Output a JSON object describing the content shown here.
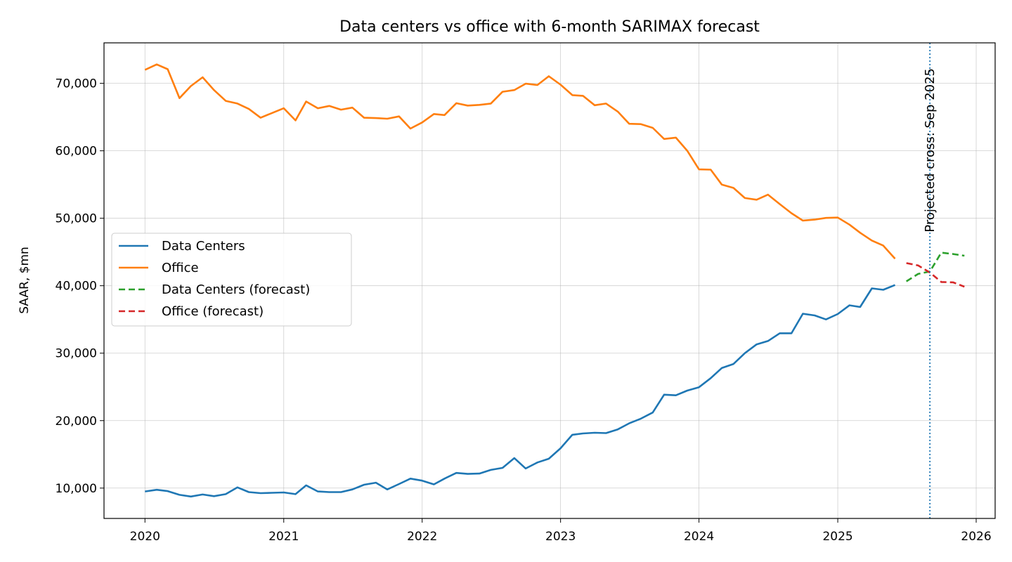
{
  "chart_data": {
    "type": "line",
    "title": "Data centers vs office with 6-month SARIMAX forecast",
    "xlabel": "",
    "ylabel": "SAAR, $mn",
    "xlim": [
      "2019-09-15",
      "2026-02-20"
    ],
    "ylim": [
      5500,
      76000
    ],
    "x_ticks": [
      "2020",
      "2021",
      "2022",
      "2023",
      "2024",
      "2025",
      "2026"
    ],
    "y_ticks": [
      10000,
      20000,
      30000,
      40000,
      50000,
      60000,
      70000
    ],
    "y_tick_labels": [
      "10,000",
      "20,000",
      "30,000",
      "40,000",
      "50,000",
      "60,000",
      "70,000"
    ],
    "grid": true,
    "legend_position": "center-left",
    "colors": {
      "data_centers": "#1f77b4",
      "office": "#ff7f0e",
      "data_centers_forecast": "#2ca02c",
      "office_forecast": "#d62728",
      "annotation_line": "#1f77b4"
    },
    "history_start": "2020-01",
    "forecast_start": "2025-07",
    "series": [
      {
        "name": "Data Centers",
        "style": "solid",
        "values": [
          9500,
          9750,
          9550,
          9000,
          8750,
          9050,
          8800,
          9100,
          10100,
          9400,
          9250,
          9300,
          9350,
          9100,
          10400,
          9500,
          9400,
          9400,
          9800,
          10500,
          10800,
          9800,
          10600,
          11400,
          11100,
          10550,
          11400,
          12250,
          12100,
          12150,
          12700,
          13000,
          14450,
          12900,
          13800,
          14350,
          15900,
          17900,
          18100,
          18200,
          18150,
          18700,
          19600,
          20300,
          21200,
          23850,
          23750,
          24450,
          24950,
          26300,
          27800,
          28400,
          30000,
          31300,
          31800,
          32950,
          32950,
          35850,
          35600,
          35000,
          35800,
          37100,
          36850,
          39600,
          39400,
          40100
        ]
      },
      {
        "name": "Office",
        "style": "solid",
        "values": [
          72000,
          72800,
          72100,
          67800,
          69600,
          70900,
          69000,
          67400,
          67000,
          66200,
          64900,
          65600,
          66300,
          64500,
          67300,
          66300,
          66650,
          66100,
          66400,
          64900,
          64850,
          64750,
          65100,
          63300,
          64200,
          65450,
          65300,
          67050,
          66700,
          66800,
          67000,
          68750,
          69000,
          69950,
          69750,
          71050,
          69800,
          68250,
          68150,
          66750,
          67000,
          65800,
          64000,
          63950,
          63400,
          61750,
          61950,
          60000,
          57250,
          57200,
          55000,
          54500,
          53000,
          52750,
          53500,
          52100,
          50750,
          49650,
          49800,
          50050,
          50100,
          49050,
          47850,
          46700,
          45950,
          44000
        ]
      },
      {
        "name": "Data Centers (forecast)",
        "style": "dashed",
        "values": [
          40650,
          41750,
          42100,
          44900,
          44700,
          44450
        ]
      },
      {
        "name": "Office (forecast)",
        "style": "dashed",
        "values": [
          43350,
          43000,
          41950,
          40550,
          40500,
          39850
        ]
      }
    ],
    "annotations": [
      {
        "type": "vline",
        "x": "2025-09",
        "label": "Projected cross: Sep 2025"
      }
    ]
  }
}
